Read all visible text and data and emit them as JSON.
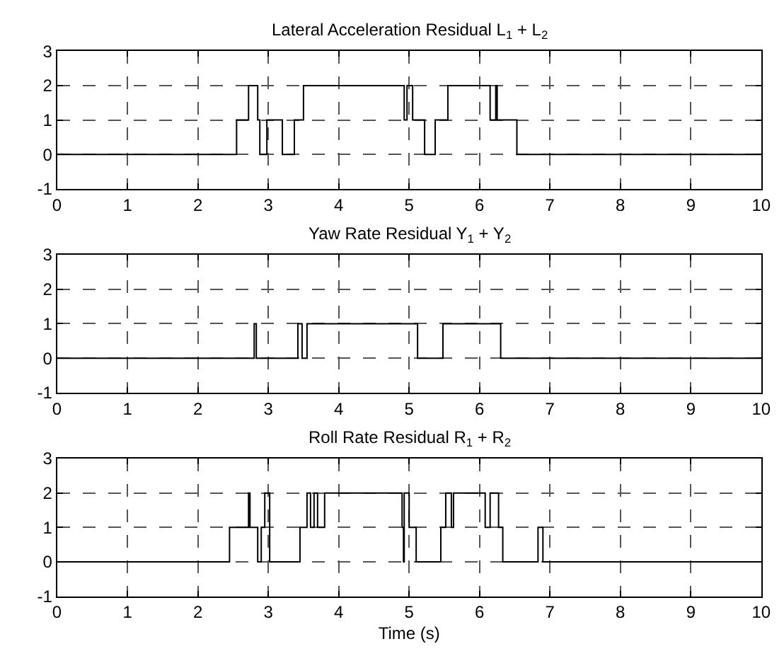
{
  "chart_data": [
    {
      "type": "step",
      "title": "Lateral Acceleration Residual L$_{1}$ + L$_{2}$",
      "x": [
        0,
        2.55,
        2.72,
        2.85,
        2.88,
        2.98,
        3.2,
        3.37,
        3.5,
        4.93,
        4.97,
        5.05,
        5.22,
        5.37,
        5.55,
        6.15,
        6.23,
        6.25,
        6.53,
        10
      ],
      "series": [
        {
          "color": "#000000",
          "values": [
            0,
            1,
            2,
            1,
            0,
            1,
            0,
            1,
            2,
            1,
            2,
            1,
            0,
            1,
            2,
            1,
            2,
            1,
            0,
            0
          ]
        }
      ],
      "xlim": [
        0,
        10
      ],
      "xticks": [
        0,
        1,
        2,
        3,
        4,
        5,
        6,
        7,
        8,
        9,
        10
      ],
      "ylim": [
        -1,
        3
      ],
      "yticks": [
        -1,
        0,
        1,
        2,
        3
      ],
      "grid": true,
      "line_style": "solid"
    },
    {
      "type": "step",
      "title": "Yaw Rate Residual Y$_{1}$ + Y$_{2}$",
      "x": [
        0,
        2.8,
        2.83,
        3.42,
        3.48,
        3.55,
        5.12,
        5.48,
        6.3,
        10
      ],
      "series": [
        {
          "color": "#000000",
          "values": [
            0,
            1,
            0,
            1,
            0,
            1,
            0,
            1,
            0,
            0
          ]
        }
      ],
      "xlim": [
        0,
        10
      ],
      "xticks": [
        0,
        1,
        2,
        3,
        4,
        5,
        6,
        7,
        8,
        9,
        10
      ],
      "ylim": [
        -1,
        3
      ],
      "yticks": [
        -1,
        0,
        1,
        2,
        3
      ],
      "grid": true,
      "line_style": "solid"
    },
    {
      "type": "step",
      "title": "Roll Rate Residual R$_{1}$ + R$_{2}$",
      "xlabel": "Time (s)",
      "x": [
        0,
        2.45,
        2.72,
        2.74,
        2.85,
        2.9,
        2.95,
        3.02,
        3.45,
        3.55,
        3.6,
        3.65,
        3.7,
        3.8,
        4.9,
        4.92,
        4.93,
        5.0,
        5.1,
        5.45,
        5.52,
        5.6,
        5.63,
        6.08,
        6.15,
        6.27,
        6.33,
        6.83,
        6.9,
        10
      ],
      "series": [
        {
          "color": "#000000",
          "values": [
            0,
            1,
            2,
            1,
            0,
            1,
            2,
            0,
            1,
            2,
            1,
            2,
            1,
            2,
            1,
            0,
            2,
            1,
            0,
            1,
            2,
            1,
            2,
            1,
            2,
            1,
            0,
            1,
            0,
            0
          ]
        }
      ],
      "xlim": [
        0,
        10
      ],
      "xticks": [
        0,
        1,
        2,
        3,
        4,
        5,
        6,
        7,
        8,
        9,
        10
      ],
      "ylim": [
        -1,
        3
      ],
      "yticks": [
        -1,
        0,
        1,
        2,
        3
      ],
      "grid": true,
      "line_style": "solid"
    }
  ]
}
